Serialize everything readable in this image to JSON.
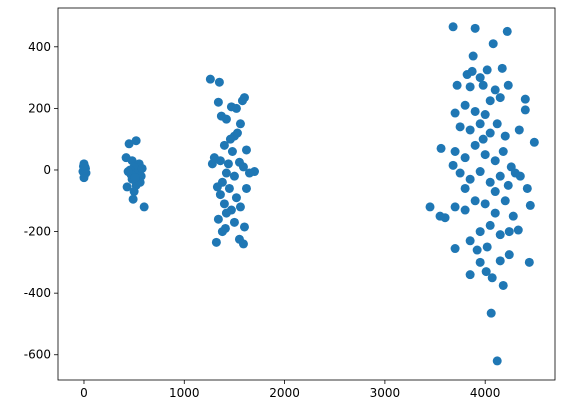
{
  "chart_data": {
    "type": "scatter",
    "color": "#1f77b4",
    "xlim": [
      -259,
      4696
    ],
    "ylim": [
      -682,
      526
    ],
    "xticks": [
      0,
      1000,
      2000,
      3000,
      4000
    ],
    "yticks": [
      -600,
      -400,
      -200,
      0,
      200,
      400
    ],
    "x": [
      0,
      10,
      -10,
      20,
      0,
      5,
      15,
      -5,
      450,
      520,
      420,
      480,
      550,
      500,
      460,
      530,
      570,
      480,
      520,
      430,
      500,
      560,
      490,
      600,
      470,
      510,
      580,
      440,
      1260,
      1350,
      1580,
      1600,
      1340,
      1470,
      1520,
      1370,
      1420,
      1560,
      1500,
      1460,
      1530,
      1400,
      1480,
      1620,
      1300,
      1360,
      1440,
      1550,
      1590,
      1700,
      1280,
      1420,
      1500,
      1650,
      1380,
      1450,
      1360,
      1520,
      1400,
      1470,
      1560,
      1420,
      1340,
      1500,
      1410,
      1600,
      1320,
      1550,
      1590,
      1380,
      1330,
      1620,
      3680,
      3900,
      4220,
      4080,
      3880,
      3820,
      3870,
      3950,
      4020,
      4170,
      3720,
      3850,
      3980,
      4100,
      4230,
      4400,
      3800,
      4050,
      4150,
      3700,
      3900,
      4000,
      4400,
      3750,
      3850,
      3950,
      4050,
      4120,
      4200,
      4340,
      4490,
      3560,
      3700,
      3800,
      3900,
      4000,
      4100,
      4180,
      4260,
      4350,
      3680,
      3750,
      3850,
      3950,
      4050,
      4150,
      4230,
      4300,
      4420,
      3450,
      3550,
      3600,
      3700,
      3800,
      3900,
      4000,
      4100,
      4200,
      4280,
      4450,
      3700,
      3850,
      3950,
      4050,
      4150,
      4240,
      4330,
      3850,
      3950,
      4010,
      4070,
      4150,
      4240,
      4440,
      4180,
      4060,
      4120,
      3920,
      4020,
      3800,
      4100,
      3980
    ],
    "y": [
      20,
      10,
      -5,
      -10,
      -25,
      0,
      5,
      12,
      85,
      95,
      40,
      30,
      20,
      10,
      0,
      -10,
      -20,
      -30,
      -50,
      -55,
      -70,
      -40,
      -95,
      -120,
      -15,
      -25,
      5,
      -5,
      295,
      285,
      225,
      235,
      220,
      205,
      200,
      175,
      165,
      150,
      110,
      100,
      120,
      80,
      60,
      65,
      40,
      30,
      20,
      25,
      10,
      -5,
      20,
      -10,
      -20,
      -10,
      -40,
      -60,
      -80,
      -90,
      -110,
      -130,
      -120,
      -140,
      -160,
      -170,
      -190,
      -185,
      -235,
      -225,
      -240,
      -200,
      -55,
      -60,
      465,
      460,
      450,
      410,
      370,
      310,
      320,
      300,
      325,
      330,
      275,
      270,
      275,
      260,
      275,
      230,
      210,
      225,
      235,
      185,
      190,
      180,
      195,
      140,
      130,
      150,
      120,
      150,
      110,
      130,
      90,
      70,
      60,
      40,
      80,
      50,
      30,
      60,
      10,
      -20,
      15,
      -10,
      -30,
      -5,
      -40,
      -20,
      -50,
      -10,
      -60,
      -120,
      -150,
      -155,
      -120,
      -130,
      -100,
      -110,
      -140,
      -100,
      -150,
      -115,
      -255,
      -230,
      -200,
      -180,
      -210,
      -200,
      -195,
      -340,
      -300,
      -330,
      -350,
      -295,
      -275,
      -300,
      -375,
      -465,
      -620,
      -260,
      -250,
      -60,
      -70,
      100
    ]
  }
}
